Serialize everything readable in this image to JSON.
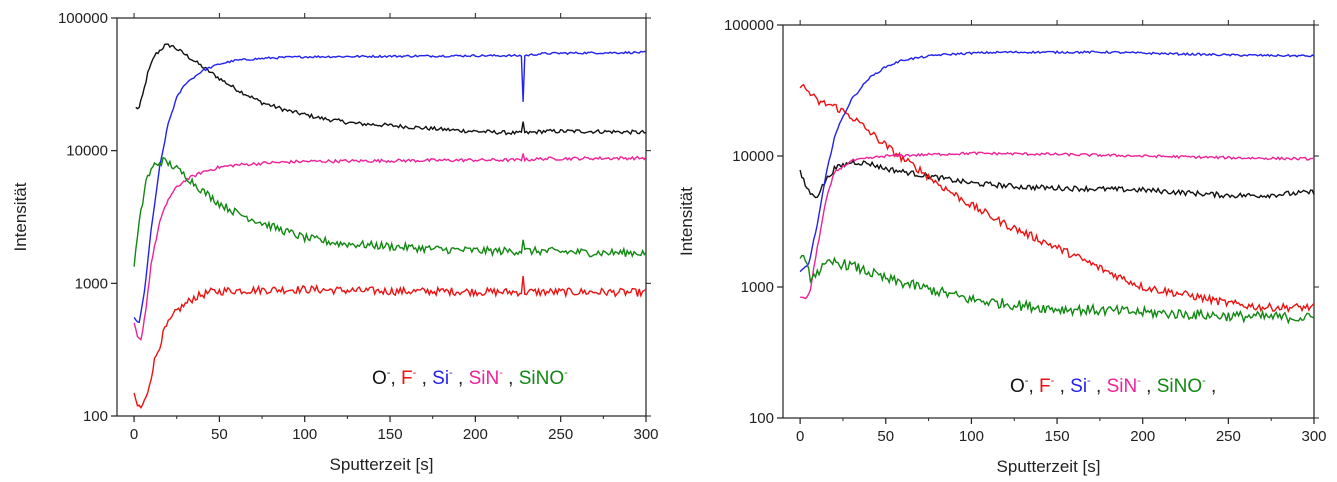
{
  "chart_data": [
    {
      "type": "line",
      "xlabel": "Sputterzeit [s]",
      "ylabel": "Intensität",
      "x_ticks": [
        "0",
        "50",
        "100",
        "150",
        "200",
        "250",
        "300"
      ],
      "y_ticks": [
        "100",
        "1000",
        "10000",
        "100000"
      ],
      "xlim": [
        -10,
        300
      ],
      "ylim": [
        100,
        100000
      ],
      "yscale": "log",
      "grid": false,
      "legend": {
        "placement": "bottom-center",
        "items": [
          {
            "base": "O",
            "sup": "-",
            "sep": ", "
          },
          {
            "base": "F",
            "sup": "-",
            "sep": " , "
          },
          {
            "base": "Si",
            "sup": "-",
            "sep": " , "
          },
          {
            "base": "SiN",
            "sup": "-",
            "sep": " , "
          },
          {
            "base": "SiNO",
            "sup": "-",
            "sep": ""
          }
        ]
      },
      "series": [
        {
          "name": "O-",
          "color": "#111111",
          "glitch": 0.09,
          "noise": 0.015,
          "points": [
            [
              1,
              21000
            ],
            [
              3,
              21000
            ],
            [
              5,
              26000
            ],
            [
              8,
              38000
            ],
            [
              12,
              52000
            ],
            [
              18,
              62000
            ],
            [
              22,
              62000
            ],
            [
              30,
              53000
            ],
            [
              40,
              43000
            ],
            [
              50,
              35000
            ],
            [
              60,
              29000
            ],
            [
              75,
              23000
            ],
            [
              90,
              20000
            ],
            [
              110,
              17500
            ],
            [
              130,
              16000
            ],
            [
              150,
              15500
            ],
            [
              170,
              14800
            ],
            [
              190,
              14200
            ],
            [
              210,
              13800
            ],
            [
              228,
              13500
            ],
            [
              240,
              14000
            ],
            [
              260,
              14000
            ],
            [
              280,
              13900
            ],
            [
              300,
              13700
            ]
          ]
        },
        {
          "name": "F-",
          "color": "#ee1111",
          "glitch": 0.1,
          "noise": 0.03,
          "points": [
            [
              0,
              140
            ],
            [
              2,
              120
            ],
            [
              4,
              115
            ],
            [
              7,
              135
            ],
            [
              12,
              260
            ],
            [
              18,
              450
            ],
            [
              25,
              620
            ],
            [
              35,
              780
            ],
            [
              45,
              860
            ],
            [
              55,
              880
            ],
            [
              70,
              890
            ],
            [
              100,
              900
            ],
            [
              130,
              880
            ],
            [
              160,
              870
            ],
            [
              190,
              870
            ],
            [
              210,
              860
            ],
            [
              228,
              860
            ],
            [
              240,
              860
            ],
            [
              270,
              860
            ],
            [
              300,
              850
            ]
          ]
        },
        {
          "name": "Si-",
          "color": "#2222ee",
          "glitch": -0.35,
          "noise": 0.008,
          "points": [
            [
              0,
              550
            ],
            [
              3,
              500
            ],
            [
              6,
              850
            ],
            [
              10,
              2500
            ],
            [
              15,
              7500
            ],
            [
              20,
              16000
            ],
            [
              25,
              25000
            ],
            [
              30,
              32000
            ],
            [
              40,
              40000
            ],
            [
              50,
              45000
            ],
            [
              60,
              48000
            ],
            [
              80,
              50000
            ],
            [
              100,
              51000
            ],
            [
              150,
              51500
            ],
            [
              200,
              52000
            ],
            [
              228,
              52000
            ],
            [
              240,
              54000
            ],
            [
              260,
              54500
            ],
            [
              300,
              55000
            ]
          ]
        },
        {
          "name": "SiN-",
          "color": "#ee2299",
          "glitch": 0.06,
          "noise": 0.012,
          "points": [
            [
              0,
              500
            ],
            [
              2,
              390
            ],
            [
              4,
              370
            ],
            [
              7,
              650
            ],
            [
              10,
              1400
            ],
            [
              15,
              2900
            ],
            [
              20,
              4300
            ],
            [
              25,
              5300
            ],
            [
              30,
              6000
            ],
            [
              40,
              6900
            ],
            [
              50,
              7500
            ],
            [
              60,
              7800
            ],
            [
              80,
              8100
            ],
            [
              100,
              8300
            ],
            [
              150,
              8400
            ],
            [
              200,
              8500
            ],
            [
              228,
              8500
            ],
            [
              240,
              8700
            ],
            [
              300,
              8800
            ]
          ]
        },
        {
          "name": "SiNO-",
          "color": "#118811",
          "glitch": 0.1,
          "noise": 0.03,
          "points": [
            [
              0,
              1380
            ],
            [
              3,
              2800
            ],
            [
              7,
              6000
            ],
            [
              12,
              7800
            ],
            [
              17,
              8400
            ],
            [
              22,
              7800
            ],
            [
              30,
              6500
            ],
            [
              40,
              5000
            ],
            [
              50,
              4000
            ],
            [
              60,
              3400
            ],
            [
              80,
              2700
            ],
            [
              100,
              2200
            ],
            [
              120,
              2000
            ],
            [
              150,
              1900
            ],
            [
              180,
              1800
            ],
            [
              210,
              1750
            ],
            [
              228,
              1750
            ],
            [
              240,
              1750
            ],
            [
              270,
              1700
            ],
            [
              300,
              1700
            ]
          ]
        }
      ]
    },
    {
      "type": "line",
      "xlabel": "Sputterzeit [s]",
      "ylabel": "Intensität",
      "x_ticks": [
        "0",
        "50",
        "100",
        "150",
        "200",
        "250",
        "300"
      ],
      "y_ticks": [
        "100",
        "1000",
        "10000",
        "100000"
      ],
      "xlim": [
        -10,
        300
      ],
      "ylim": [
        100,
        100000
      ],
      "yscale": "log",
      "grid": false,
      "legend": {
        "placement": "bottom-center",
        "items": [
          {
            "base": "O",
            "sup": "-",
            "sep": ", "
          },
          {
            "base": "F",
            "sup": "-",
            "sep": " , "
          },
          {
            "base": "Si",
            "sup": "-",
            "sep": " , "
          },
          {
            "base": "SiN",
            "sup": "-",
            "sep": " , "
          },
          {
            "base": "SiNO",
            "sup": "-",
            "sep": " ,"
          }
        ]
      },
      "series": [
        {
          "name": "O-",
          "color": "#111111",
          "noise": 0.02,
          "points": [
            [
              0,
              7500
            ],
            [
              3,
              6000
            ],
            [
              7,
              5000
            ],
            [
              10,
              5000
            ],
            [
              15,
              6500
            ],
            [
              20,
              8000
            ],
            [
              30,
              9000
            ],
            [
              40,
              8800
            ],
            [
              50,
              8000
            ],
            [
              70,
              7200
            ],
            [
              100,
              6200
            ],
            [
              130,
              5800
            ],
            [
              150,
              5700
            ],
            [
              200,
              5500
            ],
            [
              250,
              5000
            ],
            [
              270,
              5000
            ],
            [
              300,
              5300
            ]
          ]
        },
        {
          "name": "F-",
          "color": "#ee1111",
          "noise": 0.03,
          "points": [
            [
              0,
              35000
            ],
            [
              5,
              31000
            ],
            [
              10,
              26000
            ],
            [
              20,
              24000
            ],
            [
              30,
              20000
            ],
            [
              40,
              15500
            ],
            [
              50,
              12000
            ],
            [
              60,
              9500
            ],
            [
              70,
              7800
            ],
            [
              80,
              6200
            ],
            [
              100,
              4200
            ],
            [
              120,
              3000
            ],
            [
              150,
              2000
            ],
            [
              180,
              1300
            ],
            [
              200,
              1000
            ],
            [
              230,
              850
            ],
            [
              250,
              750
            ],
            [
              270,
              700
            ],
            [
              300,
              700
            ]
          ]
        },
        {
          "name": "Si-",
          "color": "#2222ee",
          "noise": 0.008,
          "points": [
            [
              0,
              1300
            ],
            [
              5,
              1500
            ],
            [
              10,
              3000
            ],
            [
              15,
              7000
            ],
            [
              20,
              14000
            ],
            [
              25,
              20000
            ],
            [
              30,
              27000
            ],
            [
              40,
              39000
            ],
            [
              50,
              48000
            ],
            [
              60,
              54000
            ],
            [
              80,
              59000
            ],
            [
              100,
              61000
            ],
            [
              120,
              62000
            ],
            [
              150,
              62000
            ],
            [
              180,
              62000
            ],
            [
              200,
              61000
            ],
            [
              250,
              59000
            ],
            [
              300,
              58000
            ]
          ]
        },
        {
          "name": "SiN-",
          "color": "#ee2299",
          "noise": 0.01,
          "points": [
            [
              0,
              850
            ],
            [
              3,
              800
            ],
            [
              6,
              950
            ],
            [
              10,
              2000
            ],
            [
              15,
              4500
            ],
            [
              20,
              7500
            ],
            [
              30,
              9200
            ],
            [
              50,
              10000
            ],
            [
              100,
              10500
            ],
            [
              150,
              10300
            ],
            [
              200,
              10000
            ],
            [
              250,
              9700
            ],
            [
              300,
              9500
            ]
          ]
        },
        {
          "name": "SiNO-",
          "color": "#118811",
          "noise": 0.04,
          "points": [
            [
              0,
              1800
            ],
            [
              3,
              1500
            ],
            [
              6,
              1200
            ],
            [
              10,
              1300
            ],
            [
              15,
              1450
            ],
            [
              20,
              1550
            ],
            [
              30,
              1450
            ],
            [
              40,
              1300
            ],
            [
              50,
              1150
            ],
            [
              70,
              1000
            ],
            [
              100,
              800
            ],
            [
              130,
              720
            ],
            [
              150,
              680
            ],
            [
              180,
              660
            ],
            [
              200,
              640
            ],
            [
              250,
              600
            ],
            [
              300,
              580
            ]
          ]
        }
      ]
    }
  ]
}
